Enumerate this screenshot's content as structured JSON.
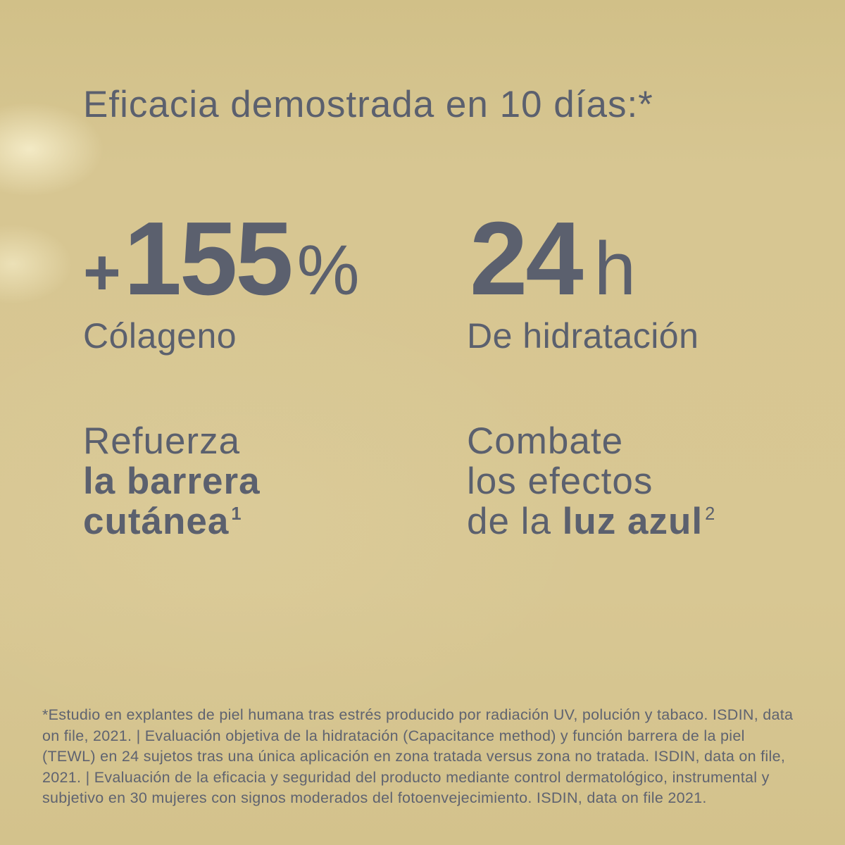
{
  "colors": {
    "background": "#d7c692",
    "text": "#5b606e",
    "footnote_text": "#5f6370"
  },
  "title": "Eficacia demostrada en 10 días:*",
  "stats": {
    "collagen": {
      "sign": "+",
      "value": "155",
      "unit": "%",
      "label": "Cólageno"
    },
    "hydration": {
      "sign": "",
      "value": "24",
      "unit": "h",
      "label": "De hidratación"
    }
  },
  "claims": {
    "skin_barrier": {
      "line1": "Refuerza",
      "line2": "la barrera",
      "line3": "cutánea",
      "line3_sup": "1"
    },
    "blue_light": {
      "line1": "Combate",
      "line2": "los efectos",
      "line3_prefix": "de la ",
      "line3_bold": "luz azul",
      "line3_sup": "2"
    }
  },
  "footnote": {
    "lines": [
      "*Estudio en explantes de piel humana tras estrés producido por radiación UV, polución y tabaco. ISDIN, data",
      "on file, 2021. | Evaluación objetiva de la hidratación (Capacitance method) y función barrera de la piel",
      "(TEWL) en 24 sujetos tras una única aplicación en zona tratada versus zona no tratada. ISDIN, data on file,",
      "2021. | Evaluación de la eficacia y seguridad del producto mediante control dermatológico, instrumental y",
      "subjetivo en 30 mujeres con signos moderados del fotoenvejecimiento. ISDIN, data on file 2021."
    ]
  }
}
